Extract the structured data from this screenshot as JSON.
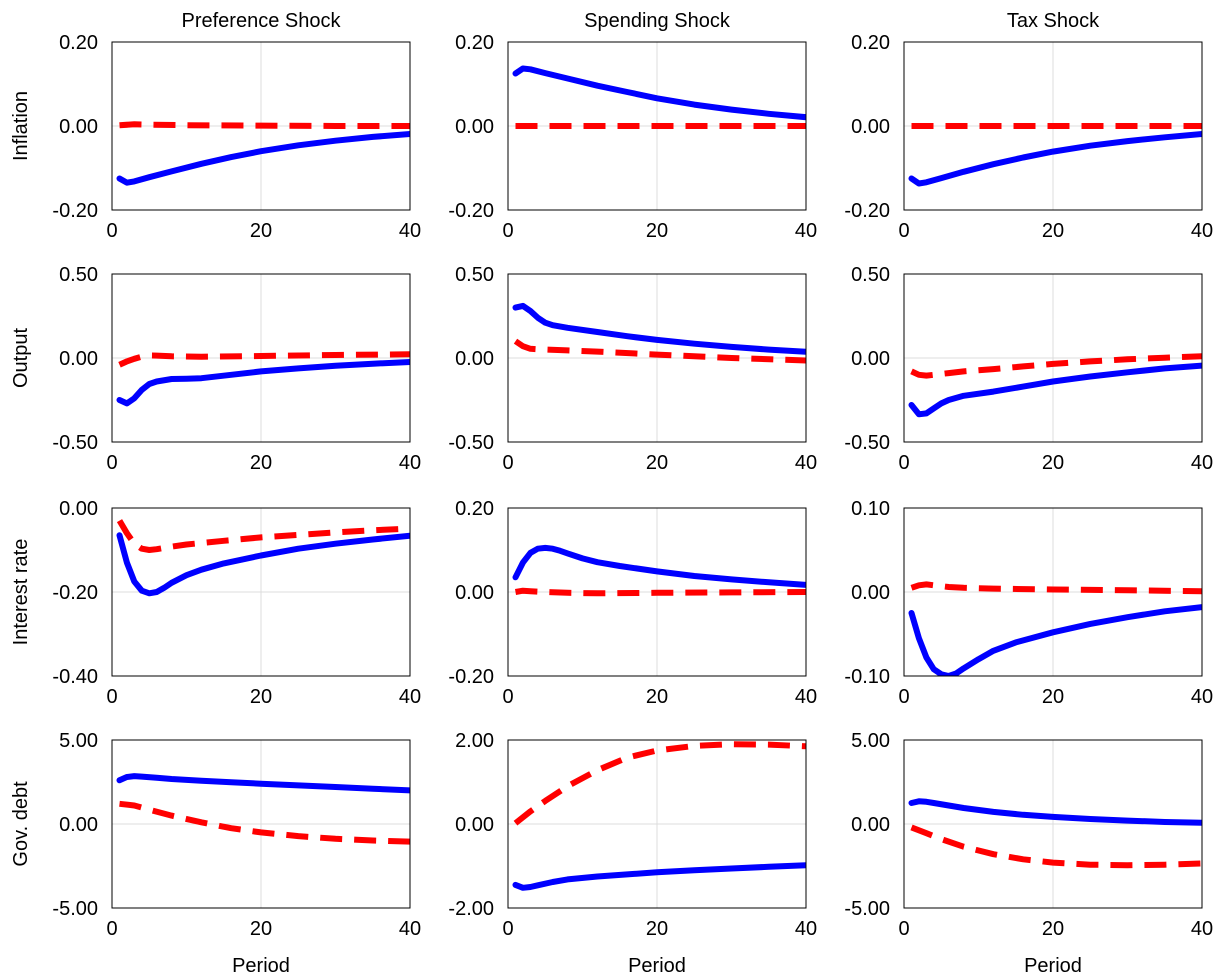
{
  "colors": {
    "blue": "#0000ff",
    "red": "#ff0000"
  },
  "chart_data": {
    "type": "line",
    "columns": [
      "Preference Shock",
      "Spending Shock",
      "Tax Shock"
    ],
    "rows": [
      "Inflation",
      "Output",
      "Interest rate",
      "Gov. debt"
    ],
    "xlabel": "Period",
    "xlim": [
      0,
      40
    ],
    "xticks": [
      0,
      20,
      40
    ],
    "grid": true,
    "series_styles": [
      {
        "color": "#0000ff",
        "style": "solid"
      },
      {
        "color": "#ff0000",
        "style": "dashed"
      }
    ],
    "panels": [
      {
        "row": 0,
        "col": 0,
        "ylim": [
          -0.2,
          0.2
        ],
        "yticks": [
          "0.20",
          "0.00",
          "-0.20"
        ],
        "ytick_values": [
          0.2,
          0.0,
          -0.2
        ],
        "series": [
          {
            "x": [
              1,
              2,
              3,
              5,
              8,
              12,
              16,
              20,
              25,
              30,
              35,
              40
            ],
            "values": [
              -0.125,
              -0.135,
              -0.132,
              -0.122,
              -0.108,
              -0.09,
              -0.074,
              -0.06,
              -0.046,
              -0.035,
              -0.026,
              -0.019
            ]
          },
          {
            "x": [
              1,
              3,
              5,
              10,
              20,
              30,
              40
            ],
            "values": [
              0.002,
              0.004,
              0.003,
              0.002,
              0.001,
              0.0,
              0.0
            ]
          }
        ]
      },
      {
        "row": 0,
        "col": 1,
        "ylim": [
          -0.2,
          0.2
        ],
        "yticks": [
          "0.20",
          "0.00",
          "-0.20"
        ],
        "ytick_values": [
          0.2,
          0.0,
          -0.2
        ],
        "series": [
          {
            "x": [
              1,
              2,
              3,
              5,
              8,
              12,
              16,
              20,
              25,
              30,
              35,
              40
            ],
            "values": [
              0.125,
              0.137,
              0.135,
              0.126,
              0.113,
              0.096,
              0.081,
              0.066,
              0.051,
              0.039,
              0.029,
              0.021
            ]
          },
          {
            "x": [
              1,
              10,
              20,
              30,
              40
            ],
            "values": [
              0.0,
              0.0,
              0.0,
              0.0,
              0.0
            ]
          }
        ]
      },
      {
        "row": 0,
        "col": 2,
        "ylim": [
          -0.2,
          0.2
        ],
        "yticks": [
          "0.20",
          "0.00",
          "-0.20"
        ],
        "ytick_values": [
          0.2,
          0.0,
          -0.2
        ],
        "series": [
          {
            "x": [
              1,
              2,
              3,
              5,
              8,
              12,
              16,
              20,
              25,
              30,
              35,
              40
            ],
            "values": [
              -0.125,
              -0.137,
              -0.134,
              -0.124,
              -0.109,
              -0.091,
              -0.075,
              -0.061,
              -0.047,
              -0.036,
              -0.027,
              -0.019
            ]
          },
          {
            "x": [
              1,
              10,
              20,
              30,
              40
            ],
            "values": [
              0.0,
              0.0,
              0.0,
              0.0,
              0.0
            ]
          }
        ]
      },
      {
        "row": 1,
        "col": 0,
        "ylim": [
          -0.5,
          0.5
        ],
        "yticks": [
          "0.50",
          "0.00",
          "-0.50"
        ],
        "ytick_values": [
          0.5,
          0.0,
          -0.5
        ],
        "series": [
          {
            "x": [
              1,
              2,
              3,
              4,
              5,
              6,
              8,
              10,
              12,
              16,
              20,
              25,
              30,
              35,
              40
            ],
            "values": [
              -0.25,
              -0.27,
              -0.24,
              -0.19,
              -0.155,
              -0.14,
              -0.125,
              -0.123,
              -0.12,
              -0.1,
              -0.08,
              -0.062,
              -0.046,
              -0.034,
              -0.024
            ]
          },
          {
            "x": [
              1,
              2,
              3,
              4,
              5,
              6,
              8,
              12,
              20,
              30,
              40
            ],
            "values": [
              -0.04,
              -0.02,
              -0.005,
              0.008,
              0.015,
              0.014,
              0.01,
              0.008,
              0.012,
              0.018,
              0.022
            ]
          }
        ]
      },
      {
        "row": 1,
        "col": 1,
        "ylim": [
          -0.5,
          0.5
        ],
        "yticks": [
          "0.50",
          "0.00",
          "-0.50"
        ],
        "ytick_values": [
          0.5,
          0.0,
          -0.5
        ],
        "series": [
          {
            "x": [
              1,
              2,
              3,
              4,
              5,
              6,
              8,
              12,
              16,
              20,
              25,
              30,
              35,
              40
            ],
            "values": [
              0.3,
              0.31,
              0.28,
              0.24,
              0.21,
              0.195,
              0.18,
              0.155,
              0.13,
              0.108,
              0.085,
              0.066,
              0.05,
              0.037
            ]
          },
          {
            "x": [
              1,
              2,
              3,
              5,
              8,
              12,
              20,
              30,
              40
            ],
            "values": [
              0.1,
              0.07,
              0.055,
              0.05,
              0.045,
              0.038,
              0.02,
              0.0,
              -0.015
            ]
          }
        ]
      },
      {
        "row": 1,
        "col": 2,
        "ylim": [
          -0.5,
          0.5
        ],
        "yticks": [
          "0.50",
          "0.00",
          "-0.50"
        ],
        "ytick_values": [
          0.5,
          0.0,
          -0.5
        ],
        "series": [
          {
            "x": [
              1,
              2,
              3,
              4,
              5,
              6,
              8,
              12,
              16,
              20,
              25,
              30,
              35,
              40
            ],
            "values": [
              -0.28,
              -0.335,
              -0.33,
              -0.3,
              -0.27,
              -0.25,
              -0.225,
              -0.2,
              -0.17,
              -0.14,
              -0.11,
              -0.085,
              -0.062,
              -0.045
            ]
          },
          {
            "x": [
              1,
              2,
              3,
              4,
              6,
              8,
              12,
              16,
              20,
              25,
              30,
              35,
              40
            ],
            "values": [
              -0.08,
              -0.1,
              -0.105,
              -0.1,
              -0.09,
              -0.08,
              -0.066,
              -0.05,
              -0.035,
              -0.02,
              -0.008,
              0.002,
              0.01
            ]
          }
        ]
      },
      {
        "row": 2,
        "col": 0,
        "ylim": [
          -0.4,
          0.0
        ],
        "yticks": [
          "0.00",
          "-0.20",
          "-0.40"
        ],
        "ytick_values": [
          0.0,
          -0.2,
          -0.4
        ],
        "series": [
          {
            "x": [
              1,
              2,
              3,
              4,
              5,
              6,
              7,
              8,
              10,
              12,
              15,
              20,
              25,
              30,
              35,
              40
            ],
            "values": [
              -0.065,
              -0.13,
              -0.175,
              -0.197,
              -0.203,
              -0.2,
              -0.19,
              -0.178,
              -0.16,
              -0.147,
              -0.132,
              -0.113,
              -0.097,
              -0.085,
              -0.075,
              -0.066
            ]
          },
          {
            "x": [
              1,
              2,
              3,
              4,
              5,
              6,
              8,
              10,
              15,
              20,
              25,
              30,
              35,
              40
            ],
            "values": [
              -0.03,
              -0.06,
              -0.085,
              -0.097,
              -0.1,
              -0.098,
              -0.092,
              -0.087,
              -0.078,
              -0.07,
              -0.064,
              -0.058,
              -0.053,
              -0.049
            ]
          }
        ]
      },
      {
        "row": 2,
        "col": 1,
        "ylim": [
          -0.2,
          0.2
        ],
        "yticks": [
          "0.20",
          "0.00",
          "-0.20"
        ],
        "ytick_values": [
          0.2,
          0.0,
          -0.2
        ],
        "series": [
          {
            "x": [
              1,
              2,
              3,
              4,
              5,
              6,
              7,
              8,
              10,
              12,
              15,
              20,
              25,
              30,
              35,
              40
            ],
            "values": [
              0.035,
              0.07,
              0.093,
              0.103,
              0.105,
              0.103,
              0.098,
              0.092,
              0.08,
              0.071,
              0.062,
              0.049,
              0.038,
              0.03,
              0.023,
              0.017
            ]
          },
          {
            "x": [
              1,
              2,
              3,
              5,
              8,
              12,
              20,
              30,
              40
            ],
            "values": [
              0.0,
              0.003,
              0.002,
              0.0,
              -0.002,
              -0.003,
              -0.002,
              -0.001,
              0.0
            ]
          }
        ]
      },
      {
        "row": 2,
        "col": 2,
        "ylim": [
          -0.1,
          0.1
        ],
        "yticks": [
          "0.10",
          "0.00",
          "-0.10"
        ],
        "ytick_values": [
          0.1,
          0.0,
          -0.1
        ],
        "series": [
          {
            "x": [
              1,
              2,
              3,
              4,
              5,
              6,
              7,
              8,
              10,
              12,
              15,
              20,
              25,
              30,
              35,
              40
            ],
            "values": [
              -0.025,
              -0.055,
              -0.078,
              -0.092,
              -0.098,
              -0.1,
              -0.097,
              -0.091,
              -0.08,
              -0.07,
              -0.06,
              -0.048,
              -0.038,
              -0.03,
              -0.023,
              -0.018
            ]
          },
          {
            "x": [
              1,
              2,
              3,
              4,
              6,
              8,
              12,
              20,
              30,
              40
            ],
            "values": [
              0.005,
              0.008,
              0.009,
              0.008,
              0.006,
              0.005,
              0.004,
              0.003,
              0.002,
              0.001
            ]
          }
        ]
      },
      {
        "row": 3,
        "col": 0,
        "ylim": [
          -5,
          5
        ],
        "yticks": [
          "5.00",
          "0.00",
          "-5.00"
        ],
        "ytick_values": [
          5,
          0,
          -5
        ],
        "series": [
          {
            "x": [
              1,
              2,
              3,
              4,
              6,
              8,
              12,
              16,
              20,
              25,
              30,
              35,
              40
            ],
            "values": [
              2.6,
              2.8,
              2.85,
              2.82,
              2.75,
              2.68,
              2.58,
              2.48,
              2.4,
              2.3,
              2.2,
              2.1,
              2.0
            ]
          },
          {
            "x": [
              1,
              3,
              5,
              8,
              12,
              16,
              20,
              25,
              30,
              35,
              40
            ],
            "values": [
              1.2,
              1.1,
              0.85,
              0.5,
              0.1,
              -0.25,
              -0.5,
              -0.72,
              -0.88,
              -0.98,
              -1.05
            ]
          }
        ]
      },
      {
        "row": 3,
        "col": 1,
        "ylim": [
          -2,
          2
        ],
        "yticks": [
          "2.00",
          "0.00",
          "-2.00"
        ],
        "ytick_values": [
          2,
          0,
          -2
        ],
        "series": [
          {
            "x": [
              1,
              2,
              3,
              4,
              6,
              8,
              12,
              16,
              20,
              25,
              30,
              35,
              40
            ],
            "values": [
              -1.45,
              -1.52,
              -1.5,
              -1.46,
              -1.38,
              -1.32,
              -1.25,
              -1.2,
              -1.15,
              -1.1,
              -1.06,
              -1.02,
              -0.98
            ]
          },
          {
            "x": [
              1,
              3,
              5,
              8,
              12,
              16,
              20,
              25,
              30,
              35,
              40
            ],
            "values": [
              0.02,
              0.3,
              0.55,
              0.9,
              1.28,
              1.58,
              1.75,
              1.86,
              1.9,
              1.89,
              1.85
            ]
          }
        ]
      },
      {
        "row": 3,
        "col": 2,
        "ylim": [
          -5,
          5
        ],
        "yticks": [
          "5.00",
          "0.00",
          "-5.00"
        ],
        "ytick_values": [
          5,
          0,
          -5
        ],
        "series": [
          {
            "x": [
              1,
              2,
              3,
              4,
              6,
              8,
              12,
              16,
              20,
              25,
              30,
              35,
              40
            ],
            "values": [
              1.25,
              1.35,
              1.32,
              1.25,
              1.1,
              0.95,
              0.72,
              0.55,
              0.42,
              0.3,
              0.2,
              0.12,
              0.07
            ]
          },
          {
            "x": [
              1,
              3,
              5,
              8,
              12,
              16,
              20,
              25,
              30,
              35,
              40
            ],
            "values": [
              -0.2,
              -0.55,
              -0.9,
              -1.35,
              -1.8,
              -2.1,
              -2.3,
              -2.42,
              -2.45,
              -2.42,
              -2.35
            ]
          }
        ]
      }
    ]
  }
}
